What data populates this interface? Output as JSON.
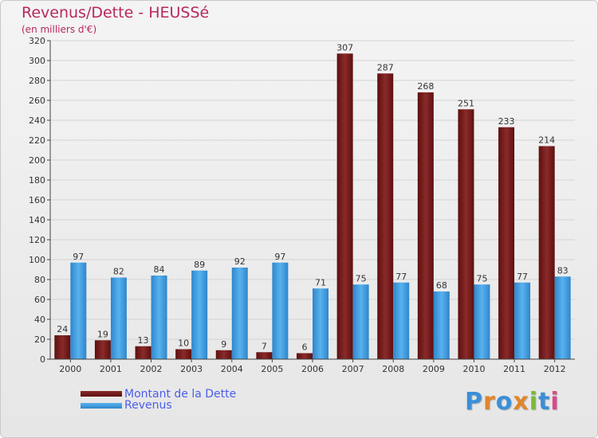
{
  "chart_data": {
    "type": "bar",
    "title": "Revenus/Dette - HEUSSé",
    "subtitle": "(en milliers d'€)",
    "xlabel": "",
    "ylabel": "",
    "ylim": [
      0,
      320
    ],
    "yticks": [
      0,
      20,
      40,
      60,
      80,
      100,
      120,
      140,
      160,
      180,
      200,
      220,
      240,
      260,
      280,
      300,
      320
    ],
    "grid": true,
    "categories": [
      "2000",
      "2001",
      "2002",
      "2003",
      "2004",
      "2005",
      "2006",
      "2007",
      "2008",
      "2009",
      "2010",
      "2011",
      "2012"
    ],
    "series": [
      {
        "name": "Montant de la Dette",
        "color": "#7a1c1c",
        "values": [
          24,
          19,
          13,
          10,
          9,
          7,
          6,
          307,
          287,
          268,
          251,
          233,
          214
        ]
      },
      {
        "name": "Revenus",
        "color": "#3f9fe0",
        "values": [
          97,
          82,
          84,
          89,
          92,
          97,
          71,
          75,
          77,
          68,
          75,
          77,
          83
        ]
      }
    ],
    "legend": "bottom-left"
  },
  "logo": {
    "letters": [
      "P",
      "r",
      "o",
      "x",
      "i",
      "t",
      "i"
    ],
    "colors": [
      "#3a8fd8",
      "#e0862a",
      "#3a8fd8",
      "#e0862a",
      "#7ab83a",
      "#3a8fd8",
      "#d84a8a"
    ]
  }
}
